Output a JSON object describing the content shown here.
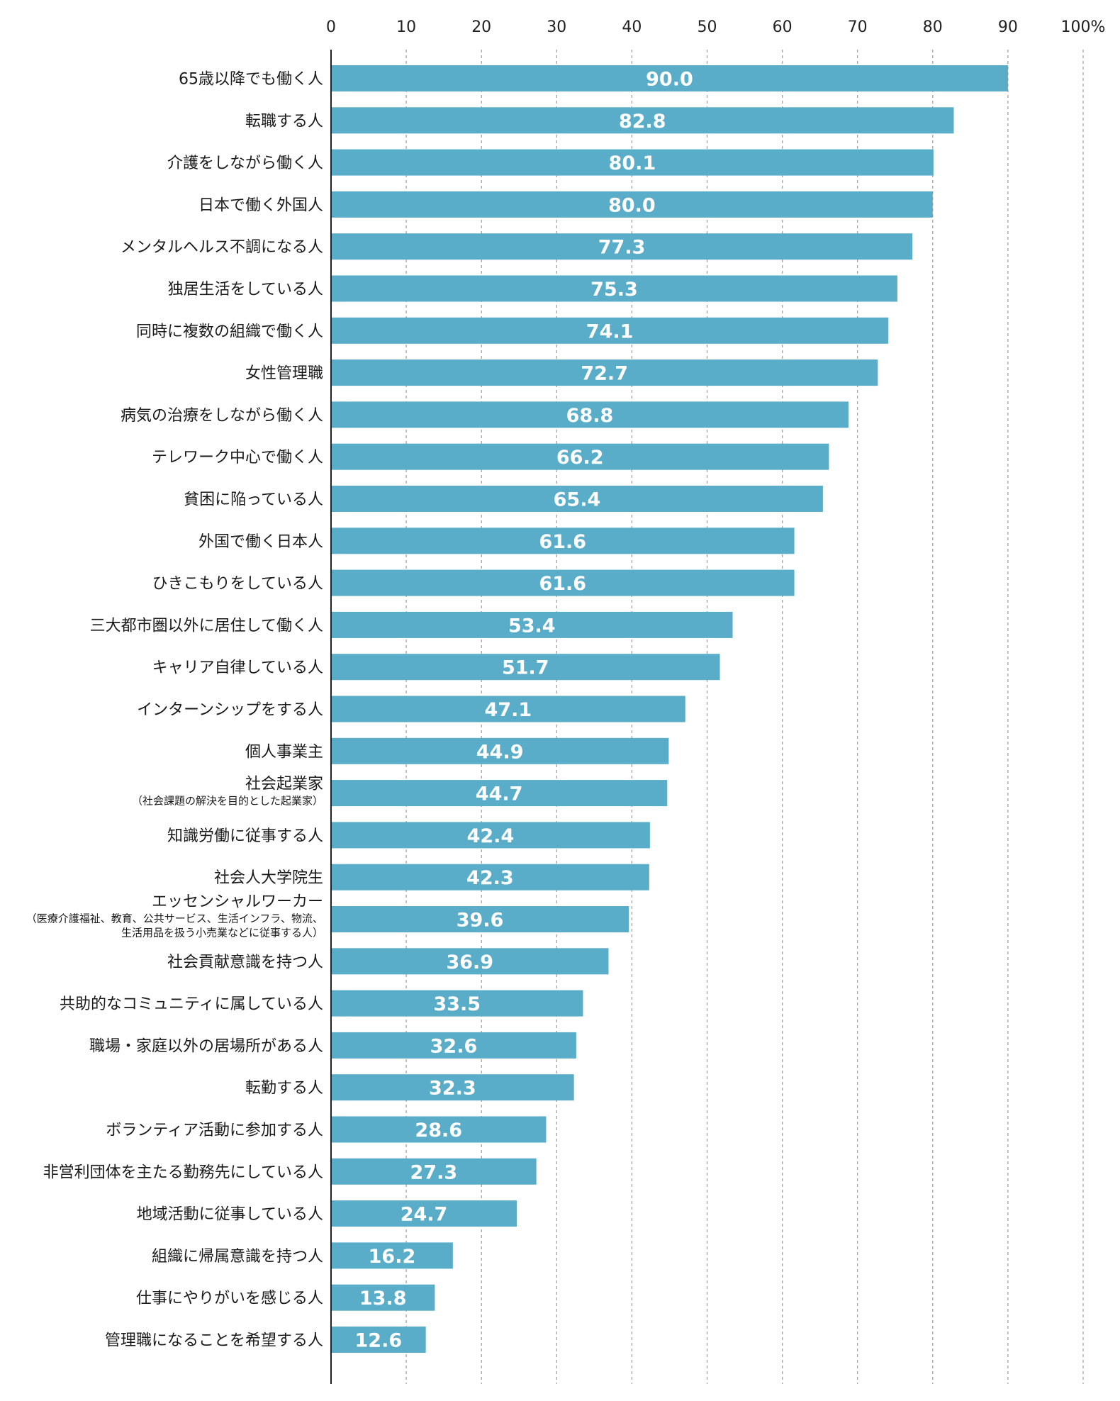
{
  "chart_data": {
    "type": "bar",
    "orientation": "horizontal",
    "xlim": [
      0,
      100
    ],
    "ticks": [
      "0",
      "10",
      "20",
      "30",
      "40",
      "50",
      "60",
      "70",
      "80",
      "90",
      "100%"
    ],
    "grid": "vertical dashed",
    "bar_color": "#5aadc9",
    "categories": [
      {
        "label": "65歳以降でも働く人",
        "value": 90.0,
        "value_label": "90.0"
      },
      {
        "label": "転職する人",
        "value": 82.8,
        "value_label": "82.8"
      },
      {
        "label": "介護をしながら働く人",
        "value": 80.1,
        "value_label": "80.1"
      },
      {
        "label": "日本で働く外国人",
        "value": 80.0,
        "value_label": "80.0"
      },
      {
        "label": "メンタルヘルス不調になる人",
        "value": 77.3,
        "value_label": "77.3"
      },
      {
        "label": "独居生活をしている人",
        "value": 75.3,
        "value_label": "75.3"
      },
      {
        "label": "同時に複数の組織で働く人",
        "value": 74.1,
        "value_label": "74.1"
      },
      {
        "label": "女性管理職",
        "value": 72.7,
        "value_label": "72.7"
      },
      {
        "label": "病気の治療をしながら働く人",
        "value": 68.8,
        "value_label": "68.8"
      },
      {
        "label": "テレワーク中心で働く人",
        "value": 66.2,
        "value_label": "66.2"
      },
      {
        "label": "貧困に陥っている人",
        "value": 65.4,
        "value_label": "65.4"
      },
      {
        "label": "外国で働く日本人",
        "value": 61.6,
        "value_label": "61.6"
      },
      {
        "label": "ひきこもりをしている人",
        "value": 61.6,
        "value_label": "61.6"
      },
      {
        "label": "三大都市圏以外に居住して働く人",
        "value": 53.4,
        "value_label": "53.4"
      },
      {
        "label": "キャリア自律している人",
        "value": 51.7,
        "value_label": "51.7"
      },
      {
        "label": "インターンシップをする人",
        "value": 47.1,
        "value_label": "47.1"
      },
      {
        "label": "個人事業主",
        "value": 44.9,
        "value_label": "44.9"
      },
      {
        "label": "社会起業家",
        "sublabel": [
          "（社会課題の解決を目的とした起業家）"
        ],
        "value": 44.7,
        "value_label": "44.7"
      },
      {
        "label": "知識労働に従事する人",
        "value": 42.4,
        "value_label": "42.4"
      },
      {
        "label": "社会人大学院生",
        "value": 42.3,
        "value_label": "42.3"
      },
      {
        "label": "エッセンシャルワーカー",
        "sublabel": [
          "（医療介護福祉、教育、公共サービス、生活インフラ、物流、",
          "生活用品を扱う小売業などに従事する人）"
        ],
        "value": 39.6,
        "value_label": "39.6"
      },
      {
        "label": "社会貢献意識を持つ人",
        "value": 36.9,
        "value_label": "36.9"
      },
      {
        "label": "共助的なコミュニティに属している人",
        "value": 33.5,
        "value_label": "33.5"
      },
      {
        "label": "職場・家庭以外の居場所がある人",
        "value": 32.6,
        "value_label": "32.6"
      },
      {
        "label": "転勤する人",
        "value": 32.3,
        "value_label": "32.3"
      },
      {
        "label": "ボランティア活動に参加する人",
        "value": 28.6,
        "value_label": "28.6"
      },
      {
        "label": "非営利団体を主たる勤務先にしている人",
        "value": 27.3,
        "value_label": "27.3"
      },
      {
        "label": "地域活動に従事している人",
        "value": 24.7,
        "value_label": "24.7"
      },
      {
        "label": "組織に帰属意識を持つ人",
        "value": 16.2,
        "value_label": "16.2"
      },
      {
        "label": "仕事にやりがいを感じる人",
        "value": 13.8,
        "value_label": "13.8"
      },
      {
        "label": "管理職になることを希望する人",
        "value": 12.6,
        "value_label": "12.6"
      }
    ]
  }
}
